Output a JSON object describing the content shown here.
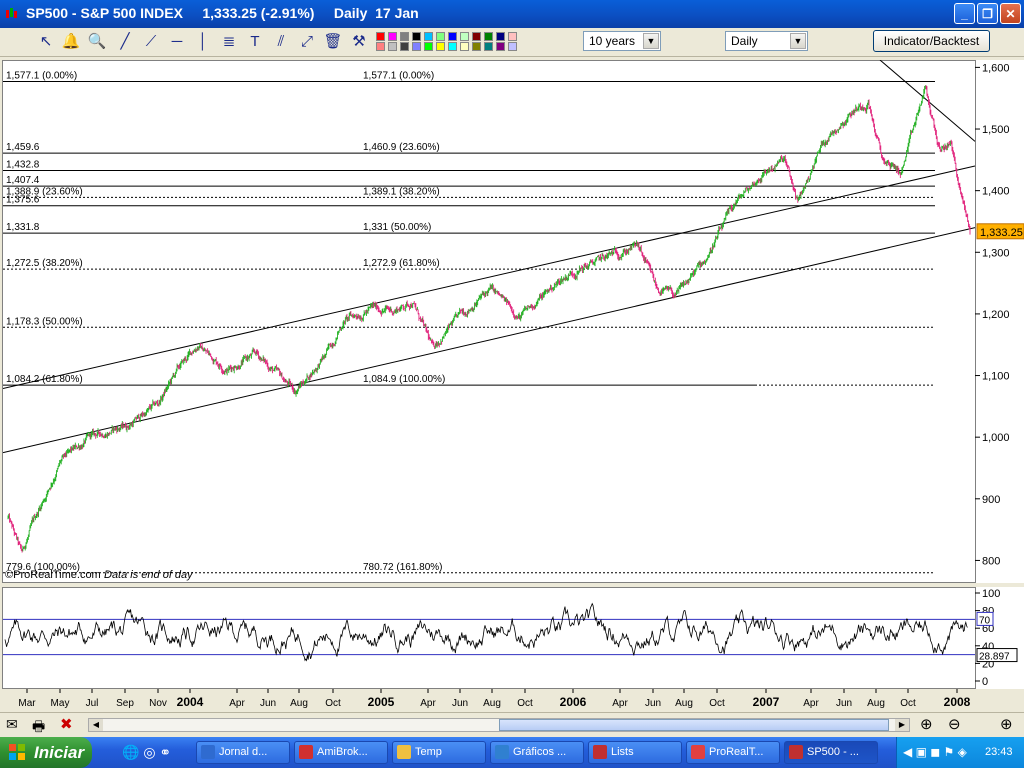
{
  "window": {
    "title": "SP500 - S&P 500 INDEX     1,333.25 (-2.91%)     Daily  17 Jan"
  },
  "toolbar": {
    "period_value": "10 years",
    "interval_value": "Daily",
    "indicator_button": "Indicator/Backtest",
    "icons": [
      "cursor-icon",
      "bell-icon",
      "zoom-icon",
      "line-icon",
      "trend-icon",
      "horizontal-line-icon",
      "vertical-line-icon",
      "fibonacci-icon",
      "text-icon",
      "parallel-icon",
      "channel-icon",
      "trash-icon",
      "tools-icon"
    ],
    "palette": [
      "#ff0000",
      "#ff8080",
      "#ff00ff",
      "#c0c0c0",
      "#808080",
      "#404040",
      "#000000",
      "#8080ff",
      "#00c0ff",
      "#00ff00",
      "#80ff80",
      "#ffff00",
      "#0000ff",
      "#00ffff",
      "#c0ffc0",
      "#ffffc0",
      "#800000",
      "#808000",
      "#008000",
      "#008080",
      "#000080",
      "#800080",
      "#ffc0c0",
      "#c0c0ff"
    ]
  },
  "chart_data": {
    "type": "candlestick",
    "symbol": "SP500",
    "last_value": "1,333.25",
    "y_ticks": [
      800,
      900,
      1000,
      1100,
      1200,
      1300,
      1400,
      1500,
      1600
    ],
    "ylim": [
      765,
      1612
    ],
    "x_months": [
      "Mar",
      "May",
      "Jul",
      "Sep",
      "Nov",
      "2004",
      "Apr",
      "Jun",
      "Aug",
      "Oct",
      "2005",
      "Apr",
      "Jun",
      "Aug",
      "Oct",
      "2006",
      "Apr",
      "Jun",
      "Aug",
      "Oct",
      "2007",
      "Apr",
      "Jun",
      "Aug",
      "Oct",
      "2008"
    ],
    "bold_labels": [
      "2004",
      "2005",
      "2006",
      "2007",
      "2008"
    ],
    "x_range": [
      2003.13,
      2008.05
    ],
    "price_path": [
      {
        "t": 2003.13,
        "v": 870
      },
      {
        "t": 2003.2,
        "v": 810
      },
      {
        "t": 2003.27,
        "v": 870
      },
      {
        "t": 2003.4,
        "v": 960
      },
      {
        "t": 2003.55,
        "v": 1000
      },
      {
        "t": 2003.75,
        "v": 1020
      },
      {
        "t": 2003.9,
        "v": 1055
      },
      {
        "t": 2004.0,
        "v": 1110
      },
      {
        "t": 2004.1,
        "v": 1150
      },
      {
        "t": 2004.25,
        "v": 1110
      },
      {
        "t": 2004.4,
        "v": 1135
      },
      {
        "t": 2004.6,
        "v": 1075
      },
      {
        "t": 2004.75,
        "v": 1130
      },
      {
        "t": 2004.85,
        "v": 1190
      },
      {
        "t": 2005.0,
        "v": 1210
      },
      {
        "t": 2005.1,
        "v": 1205
      },
      {
        "t": 2005.2,
        "v": 1220
      },
      {
        "t": 2005.3,
        "v": 1145
      },
      {
        "t": 2005.45,
        "v": 1200
      },
      {
        "t": 2005.6,
        "v": 1240
      },
      {
        "t": 2005.75,
        "v": 1195
      },
      {
        "t": 2005.9,
        "v": 1240
      },
      {
        "t": 2006.0,
        "v": 1265
      },
      {
        "t": 2006.25,
        "v": 1300
      },
      {
        "t": 2006.35,
        "v": 1310
      },
      {
        "t": 2006.45,
        "v": 1240
      },
      {
        "t": 2006.55,
        "v": 1230
      },
      {
        "t": 2006.7,
        "v": 1290
      },
      {
        "t": 2006.85,
        "v": 1380
      },
      {
        "t": 2007.0,
        "v": 1430
      },
      {
        "t": 2007.1,
        "v": 1450
      },
      {
        "t": 2007.17,
        "v": 1380
      },
      {
        "t": 2007.3,
        "v": 1480
      },
      {
        "t": 2007.45,
        "v": 1530
      },
      {
        "t": 2007.53,
        "v": 1545
      },
      {
        "t": 2007.6,
        "v": 1450
      },
      {
        "t": 2007.7,
        "v": 1430
      },
      {
        "t": 2007.78,
        "v": 1520
      },
      {
        "t": 2007.82,
        "v": 1565
      },
      {
        "t": 2007.9,
        "v": 1460
      },
      {
        "t": 2007.95,
        "v": 1480
      },
      {
        "t": 2008.0,
        "v": 1400
      },
      {
        "t": 2008.05,
        "v": 1333
      }
    ],
    "horizontal_levels": [
      {
        "price": 1577.1,
        "left_label": "1,577.1 (0.00%)",
        "mid_label": "1,577.1 (0.00%)",
        "style": "solid"
      },
      {
        "price": 1460.9,
        "left_label": "1,459.6",
        "mid_label": "1,460.9 (23.60%)",
        "style": "solid"
      },
      {
        "price": 1432.8,
        "left_label": "1,432.8",
        "mid_label": "",
        "style": "solid"
      },
      {
        "price": 1407.4,
        "left_label": "1,407.4",
        "mid_label": "",
        "style": "solid"
      },
      {
        "price": 1389.0,
        "left_label": "1,388.9 (23.60%)",
        "mid_label": "1,389.1 (38.20%)",
        "style": "dotted"
      },
      {
        "price": 1375.6,
        "left_label": "1,375.6",
        "mid_label": "",
        "style": "solid"
      },
      {
        "price": 1331.0,
        "left_label": "1,331.8",
        "mid_label": "1,331 (50.00%)",
        "style": "solid"
      },
      {
        "price": 1272.7,
        "left_label": "1,272.5 (38.20%)",
        "mid_label": "1,272.9 (61.80%)",
        "style": "dotted"
      },
      {
        "price": 1178.3,
        "left_label": "1,178.3 (50.00%)",
        "mid_label": "",
        "style": "dotted"
      },
      {
        "price": 1084.5,
        "left_label": "1,084.2 (61.80%)",
        "mid_label": "1,084.9 (100.00%)",
        "style": "mixed"
      },
      {
        "price": 780.0,
        "left_label": "779.6 (100.00%)",
        "mid_label": "780.72 (161.80%)",
        "style": "dotted"
      }
    ],
    "watermark": "©ProRealTime.com",
    "note": "Data is end of day"
  },
  "rsi_data": {
    "y_ticks": [
      0,
      20,
      40,
      60,
      80,
      100
    ],
    "levels": [
      70,
      30
    ],
    "level_label": "70",
    "last_value": "28.897"
  },
  "taskbar": {
    "start_label": "Iniciar",
    "tasks": [
      "Jornal d...",
      "AmiBrok...",
      "Temp",
      "Gráficos ...",
      "Lists",
      "ProRealT...",
      "SP500 - ..."
    ],
    "clock": "23:43"
  }
}
